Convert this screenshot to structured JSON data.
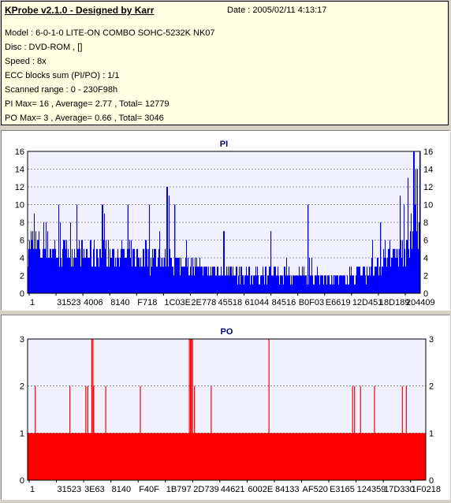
{
  "info": {
    "title": "KProbe v2.1.0 - Designed by Karr",
    "date": "Date : 2005/02/11 4:13:17",
    "lines": [
      "Model : 6-0-1-0 LITE-ON COMBO SOHC-5232K NK07",
      "Disc : DVD-ROM ,  []",
      "Speed : 8x",
      "ECC blocks sum (PI/PO) : 1/1",
      "Scanned range : 0 - 230F98h",
      "PI Max= 16 , Average= 2.77 , Total= 12779",
      "PO Max= 3 , Average= 0.66 , Total= 3046"
    ]
  },
  "colors": {
    "pi": "#0000ff",
    "po": "#ff0000",
    "plot_bg": "#f0f0ff",
    "title": "#000080"
  },
  "chart_data": [
    {
      "type": "bar",
      "title": "PI",
      "ylim": [
        0,
        16
      ],
      "yticks": [
        0,
        2,
        4,
        6,
        8,
        10,
        12,
        14,
        16
      ],
      "xticks": [
        "1",
        "31523",
        "4006",
        "8140",
        "F718",
        "1C03E",
        "2E778",
        "45518",
        "61044",
        "84516",
        "B0F03",
        "E6619",
        "12D451",
        "18D189",
        "204409"
      ],
      "grid": true,
      "profile": [
        [
          0,
          5.5
        ],
        [
          0.02,
          5.3
        ],
        [
          0.05,
          5.0
        ],
        [
          0.1,
          4.8
        ],
        [
          0.15,
          4.6
        ],
        [
          0.2,
          4.4
        ],
        [
          0.25,
          4.2
        ],
        [
          0.3,
          4.0
        ],
        [
          0.35,
          3.6
        ],
        [
          0.4,
          3.1
        ],
        [
          0.45,
          2.6
        ],
        [
          0.5,
          2.3
        ],
        [
          0.55,
          2.2
        ],
        [
          0.6,
          2.2
        ],
        [
          0.65,
          2.1
        ],
        [
          0.7,
          2.0
        ],
        [
          0.75,
          1.8
        ],
        [
          0.8,
          1.7
        ],
        [
          0.85,
          2.2
        ],
        [
          0.9,
          2.8
        ],
        [
          0.93,
          3.8
        ],
        [
          0.96,
          5.2
        ],
        [
          0.98,
          7.0
        ],
        [
          1.0,
          9.0
        ]
      ],
      "peaks": [
        [
          0.125,
          10
        ],
        [
          0.19,
          10
        ],
        [
          0.255,
          10
        ],
        [
          0.31,
          10
        ],
        [
          0.355,
          12
        ],
        [
          0.36,
          11
        ],
        [
          0.375,
          10
        ],
        [
          0.5,
          7
        ],
        [
          0.62,
          7
        ],
        [
          0.715,
          10
        ],
        [
          0.9,
          8
        ],
        [
          0.95,
          11
        ],
        [
          0.97,
          13
        ],
        [
          0.985,
          16
        ],
        [
          0.99,
          14
        ]
      ]
    },
    {
      "type": "bar",
      "title": "PO",
      "ylim": [
        0,
        3
      ],
      "yticks": [
        0,
        1,
        2,
        3
      ],
      "xticks": [
        "1",
        "31523",
        "3E63",
        "8140",
        "F40F",
        "1B797",
        "2D739",
        "44621",
        "6002E",
        "84133",
        "AF520",
        "E3165",
        "124359",
        "17D330",
        "1F0218"
      ],
      "grid": true,
      "base_value": 1,
      "spikes": [
        [
          0.018,
          2
        ],
        [
          0.105,
          2
        ],
        [
          0.145,
          2
        ],
        [
          0.15,
          2
        ],
        [
          0.16,
          3
        ],
        [
          0.163,
          3
        ],
        [
          0.165,
          2
        ],
        [
          0.195,
          2
        ],
        [
          0.282,
          2
        ],
        [
          0.405,
          3
        ],
        [
          0.408,
          3
        ],
        [
          0.41,
          3
        ],
        [
          0.413,
          3
        ],
        [
          0.418,
          2
        ],
        [
          0.46,
          2
        ],
        [
          0.605,
          3
        ],
        [
          0.815,
          2
        ],
        [
          0.82,
          2
        ],
        [
          0.835,
          2
        ],
        [
          0.87,
          2
        ],
        [
          0.94,
          2
        ],
        [
          0.95,
          2
        ]
      ]
    }
  ]
}
